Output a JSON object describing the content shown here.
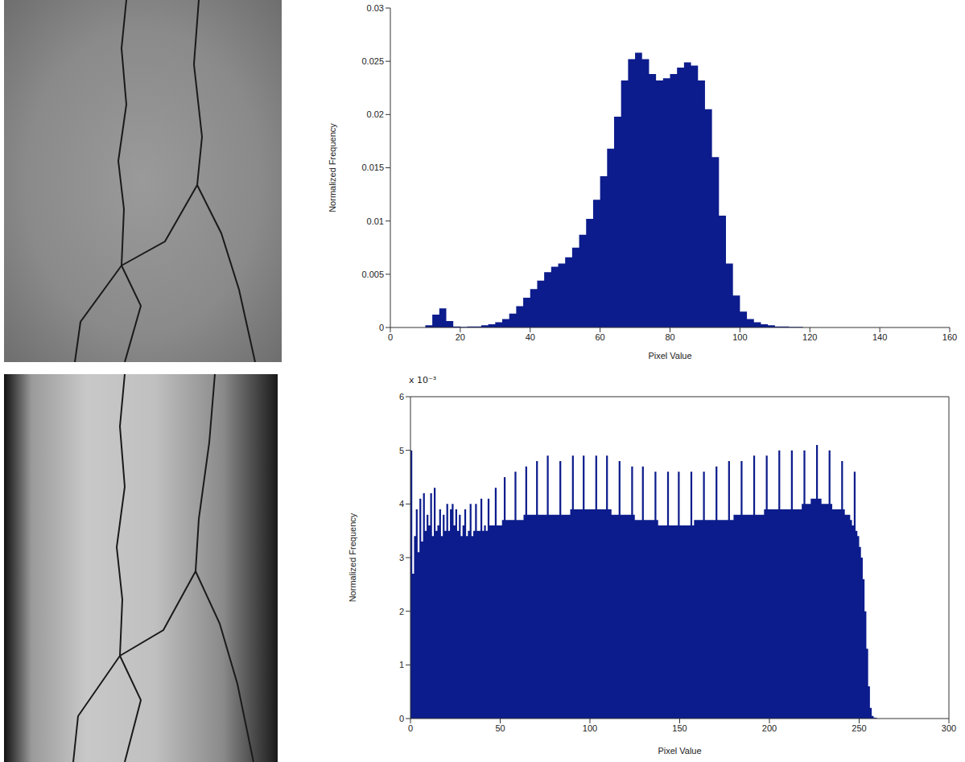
{
  "chart_data": [
    {
      "type": "histogram",
      "x_label": "Pixel Value",
      "y_label": "Normalized Frequency",
      "color": "#0c1c8c",
      "bins": [
        0,
        2,
        4,
        6,
        8,
        10,
        12,
        14,
        16,
        18,
        20,
        22,
        24,
        26,
        28,
        30,
        32,
        34,
        36,
        38,
        40,
        42,
        44,
        46,
        48,
        50,
        52,
        54,
        56,
        58,
        60,
        62,
        64,
        66,
        68,
        70,
        72,
        74,
        76,
        78,
        80,
        82,
        84,
        86,
        88,
        90,
        92,
        94,
        96,
        98,
        100,
        102,
        104,
        106,
        108,
        110,
        112,
        114,
        116,
        118,
        120,
        122,
        124,
        126,
        128,
        130,
        132,
        134,
        136,
        138,
        140,
        142,
        144,
        146,
        148,
        150,
        152,
        154,
        156,
        158,
        160
      ],
      "values": [
        0,
        0,
        0,
        0,
        0,
        0.0002,
        0.0012,
        0.0018,
        0.0006,
        0.0001,
        5e-05,
        0.0001,
        0.0001,
        0.0002,
        0.0003,
        0.0005,
        0.0008,
        0.0013,
        0.002,
        0.0028,
        0.0036,
        0.0044,
        0.0052,
        0.0057,
        0.006,
        0.0066,
        0.0075,
        0.0087,
        0.0102,
        0.012,
        0.0142,
        0.0168,
        0.0198,
        0.0232,
        0.0252,
        0.0258,
        0.0252,
        0.0238,
        0.0232,
        0.0234,
        0.0238,
        0.0244,
        0.0249,
        0.0246,
        0.0232,
        0.0205,
        0.016,
        0.0105,
        0.006,
        0.003,
        0.0015,
        0.0008,
        0.0005,
        0.0003,
        0.0002,
        0.0001,
        0.0001,
        5e-05,
        5e-05,
        0,
        0,
        0,
        0,
        0,
        0,
        0,
        0,
        0,
        0,
        0,
        0,
        0,
        0,
        0,
        0,
        0,
        0,
        0,
        0,
        0
      ],
      "xlim": [
        0,
        160
      ],
      "xticks": [
        0,
        20,
        40,
        60,
        80,
        100,
        120,
        140,
        160
      ],
      "ylim": [
        0,
        0.03
      ],
      "yticks": [
        0,
        0.005,
        0.01,
        0.015,
        0.02,
        0.025,
        0.03
      ]
    },
    {
      "type": "histogram",
      "x_label": "Pixel Value",
      "y_label": "Normalized Frequency",
      "color": "#0c1c8c",
      "annotation": "x 10⁻³",
      "bins": [
        0,
        1,
        2,
        3,
        4,
        5,
        6,
        7,
        8,
        9,
        10,
        11,
        12,
        13,
        14,
        15,
        16,
        17,
        18,
        19,
        20,
        21,
        22,
        23,
        24,
        25,
        26,
        27,
        28,
        29,
        30,
        31,
        32,
        33,
        34,
        35,
        36,
        37,
        38,
        39,
        40,
        41,
        42,
        43,
        44,
        45,
        46,
        47,
        48,
        49,
        50,
        51,
        52,
        53,
        54,
        55,
        56,
        57,
        58,
        59,
        60,
        61,
        62,
        63,
        64,
        65,
        66,
        67,
        68,
        69,
        70,
        71,
        72,
        73,
        74,
        75,
        76,
        77,
        78,
        79,
        80,
        81,
        82,
        83,
        84,
        85,
        86,
        87,
        88,
        89,
        90,
        91,
        92,
        93,
        94,
        95,
        96,
        97,
        98,
        99,
        100,
        101,
        102,
        103,
        104,
        105,
        106,
        107,
        108,
        109,
        110,
        111,
        112,
        113,
        114,
        115,
        116,
        117,
        118,
        119,
        120,
        121,
        122,
        123,
        124,
        125,
        126,
        127,
        128,
        129,
        130,
        131,
        132,
        133,
        134,
        135,
        136,
        137,
        138,
        139,
        140,
        141,
        142,
        143,
        144,
        145,
        146,
        147,
        148,
        149,
        150,
        151,
        152,
        153,
        154,
        155,
        156,
        157,
        158,
        159,
        160,
        161,
        162,
        163,
        164,
        165,
        166,
        167,
        168,
        169,
        170,
        171,
        172,
        173,
        174,
        175,
        176,
        177,
        178,
        179,
        180,
        181,
        182,
        183,
        184,
        185,
        186,
        187,
        188,
        189,
        190,
        191,
        192,
        193,
        194,
        195,
        196,
        197,
        198,
        199,
        200,
        201,
        202,
        203,
        204,
        205,
        206,
        207,
        208,
        209,
        210,
        211,
        212,
        213,
        214,
        215,
        216,
        217,
        218,
        219,
        220,
        221,
        222,
        223,
        224,
        225,
        226,
        227,
        228,
        229,
        230,
        231,
        232,
        233,
        234,
        235,
        236,
        237,
        238,
        239,
        240,
        241,
        242,
        243,
        244,
        245,
        246,
        247,
        248,
        249,
        250,
        251,
        252,
        253,
        254,
        255,
        256,
        257,
        258,
        259,
        260,
        261,
        262
      ],
      "values": [
        5.0,
        2.7,
        3.4,
        3.9,
        3.1,
        4.1,
        3.3,
        4.2,
        3.5,
        3.8,
        3.6,
        4.2,
        3.4,
        4.3,
        3.5,
        3.6,
        3.9,
        3.4,
        3.8,
        3.5,
        4.0,
        3.5,
        3.9,
        4.0,
        3.6,
        3.9,
        3.5,
        3.8,
        3.4,
        3.6,
        3.9,
        3.4,
        3.5,
        4.0,
        3.4,
        3.5,
        4.0,
        3.5,
        3.5,
        4.1,
        3.5,
        3.6,
        3.5,
        4.1,
        3.6,
        3.6,
        3.6,
        4.3,
        3.6,
        3.6,
        3.6,
        3.7,
        4.5,
        3.7,
        3.7,
        3.7,
        3.7,
        3.7,
        4.6,
        3.7,
        3.7,
        3.7,
        3.7,
        3.8,
        4.7,
        3.8,
        3.8,
        3.8,
        3.8,
        3.8,
        4.8,
        3.8,
        3.8,
        3.8,
        3.8,
        3.8,
        4.9,
        3.8,
        3.8,
        3.8,
        3.8,
        3.8,
        3.8,
        4.8,
        3.8,
        3.8,
        3.8,
        3.8,
        3.8,
        3.9,
        4.9,
        3.9,
        3.9,
        3.9,
        3.9,
        3.9,
        4.9,
        3.9,
        3.9,
        3.9,
        3.9,
        3.9,
        3.9,
        4.9,
        3.9,
        3.9,
        3.9,
        3.9,
        3.9,
        4.9,
        3.9,
        3.9,
        3.8,
        3.8,
        3.8,
        3.8,
        4.8,
        3.8,
        3.8,
        3.8,
        3.8,
        3.8,
        3.8,
        4.7,
        3.8,
        3.7,
        3.7,
        3.7,
        3.7,
        4.7,
        3.7,
        3.7,
        3.7,
        3.7,
        3.7,
        3.7,
        4.6,
        3.7,
        3.6,
        3.6,
        3.6,
        3.6,
        3.6,
        4.6,
        3.6,
        3.6,
        3.6,
        3.6,
        3.6,
        4.6,
        3.6,
        3.6,
        3.6,
        3.6,
        3.6,
        3.6,
        4.6,
        3.6,
        3.7,
        3.7,
        3.7,
        3.7,
        3.7,
        4.6,
        3.7,
        3.7,
        3.7,
        3.7,
        3.7,
        3.7,
        4.7,
        3.7,
        3.7,
        3.7,
        3.7,
        3.7,
        3.7,
        4.8,
        3.7,
        3.7,
        3.8,
        3.8,
        3.8,
        3.8,
        4.8,
        3.8,
        3.8,
        3.8,
        3.8,
        3.8,
        3.8,
        4.9,
        3.8,
        3.8,
        3.8,
        3.8,
        3.8,
        3.9,
        4.9,
        3.9,
        3.9,
        3.9,
        3.9,
        3.9,
        3.9,
        5.0,
        3.9,
        3.9,
        3.9,
        3.9,
        3.9,
        3.9,
        5.0,
        3.9,
        3.9,
        3.9,
        3.9,
        3.9,
        4.0,
        5.0,
        4.0,
        4.0,
        4.0,
        4.1,
        4.1,
        4.1,
        5.1,
        4.1,
        4.1,
        4.0,
        4.0,
        4.0,
        4.0,
        5.0,
        4.0,
        3.9,
        3.9,
        3.9,
        3.9,
        3.9,
        4.8,
        3.9,
        3.8,
        3.8,
        3.8,
        3.7,
        3.6,
        4.6,
        3.5,
        3.4,
        3.2,
        3.0,
        2.6,
        2.0,
        1.3,
        0.6,
        0.2,
        0.05,
        0.02,
        0.01,
        0,
        0
      ],
      "xlim": [
        0,
        300
      ],
      "xticks": [
        0,
        50,
        100,
        150,
        200,
        250,
        300
      ],
      "ylim": [
        0,
        6
      ],
      "yticks": [
        0,
        1,
        2,
        3,
        4,
        5,
        6
      ]
    }
  ]
}
